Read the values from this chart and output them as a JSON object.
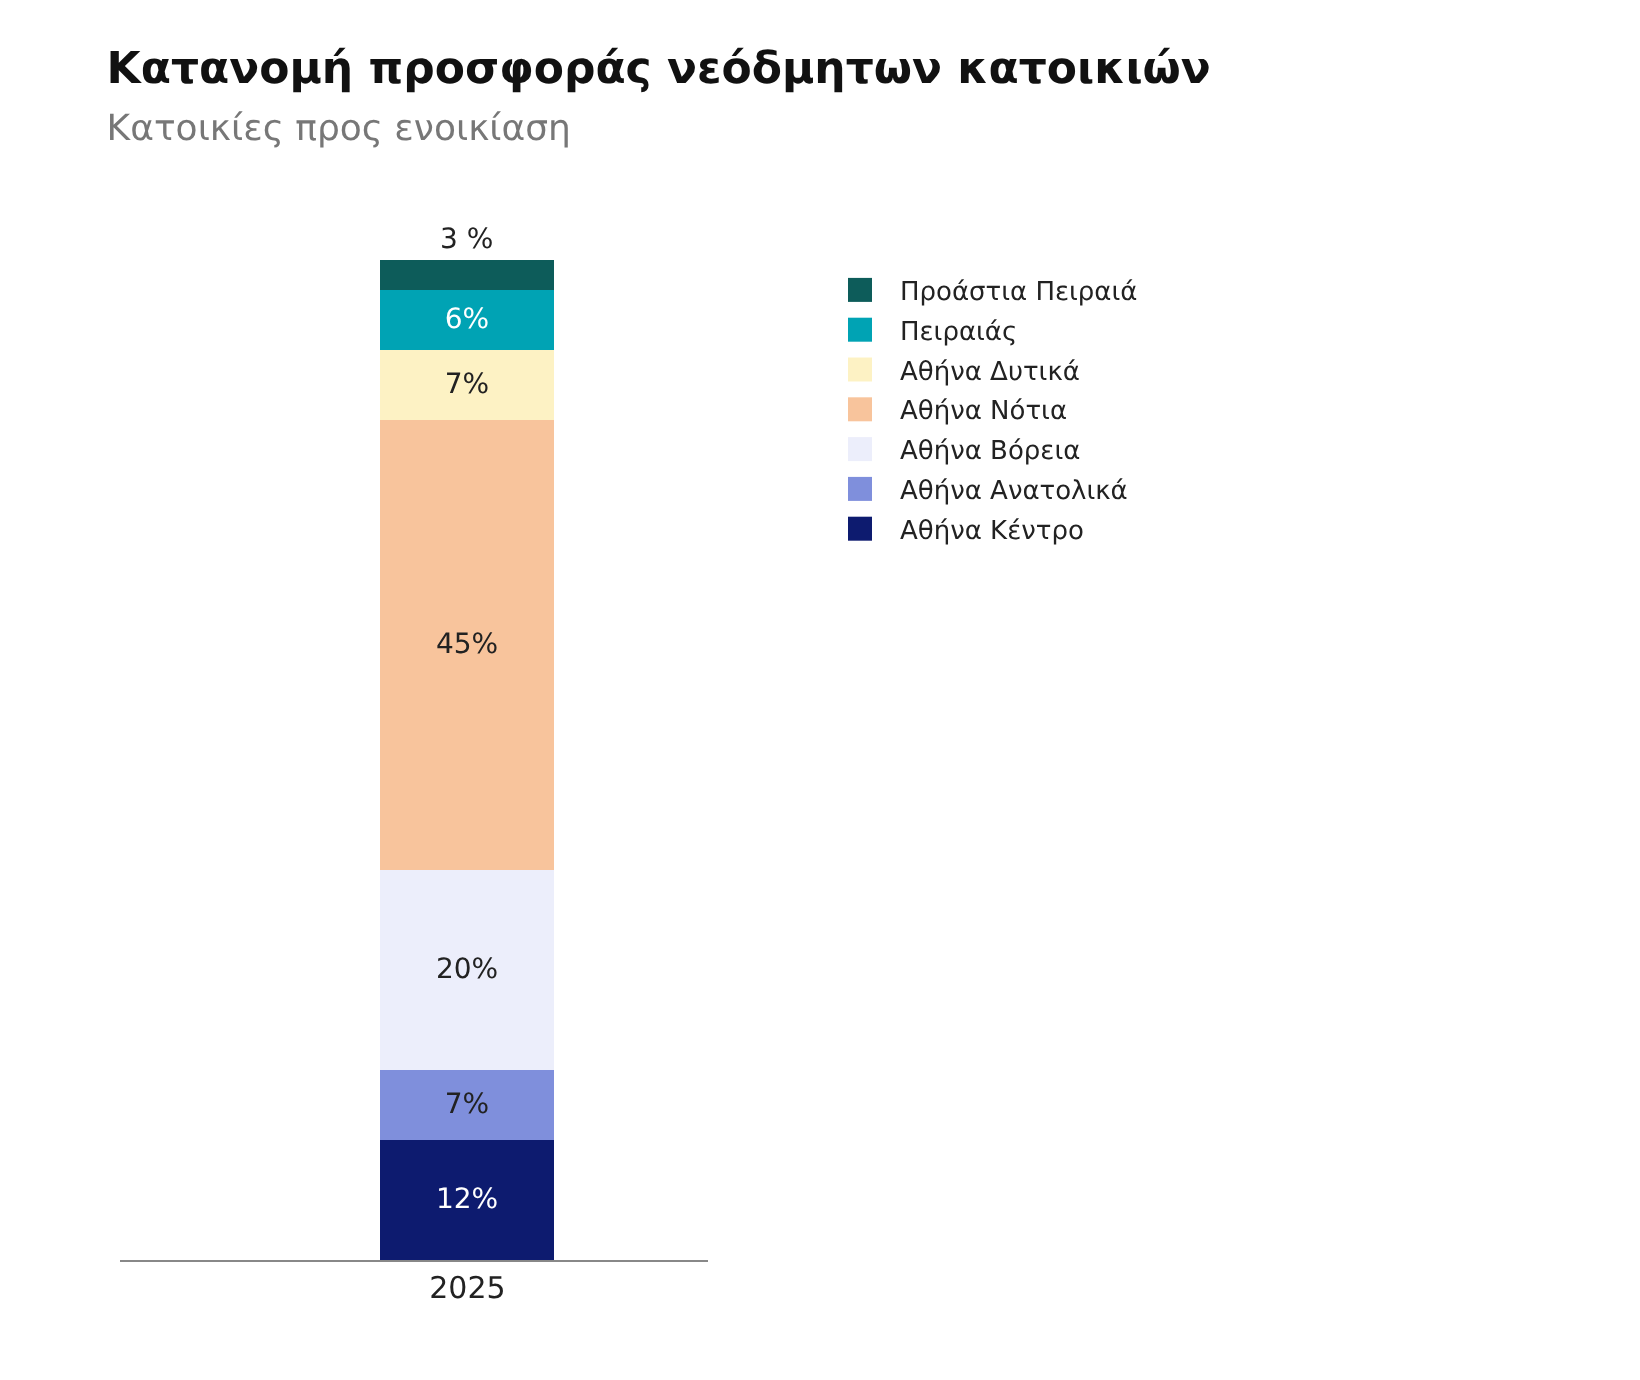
{
  "chart_data": {
    "type": "bar",
    "title": "Κατανομή προσφοράς νεόδμητων κατοικιών",
    "subtitle": "Κατοικίες προς ενοικίαση",
    "categories": [
      "2025"
    ],
    "stacked": true,
    "legend": "right",
    "tick_labels": "x",
    "series": [
      {
        "name": "Αθήνα Κέντρο",
        "color": "#0d1b6f",
        "values": [
          12
        ],
        "value_labels": [
          "12%"
        ]
      },
      {
        "name": "Αθήνα Ανατολικά",
        "color": "#7f8fdc",
        "values": [
          7
        ],
        "value_labels": [
          "7%"
        ]
      },
      {
        "name": "Αθήνα Βόρεια",
        "color": "#eceefb",
        "values": [
          20
        ],
        "value_labels": [
          "20%"
        ]
      },
      {
        "name": "Αθήνα Νότια",
        "color": "#f8c49c",
        "values": [
          45
        ],
        "value_labels": [
          "45%"
        ]
      },
      {
        "name": "Αθήνα Δυτικά",
        "color": "#fdf2c4",
        "values": [
          7
        ],
        "value_labels": [
          "7%"
        ]
      },
      {
        "name": "Πειραιάς",
        "color": "#00a3b4",
        "values": [
          6
        ],
        "value_labels": [
          "6%"
        ]
      },
      {
        "name": "Προάστια Πειραιά",
        "color": "#0d5c5a",
        "values": [
          3
        ],
        "value_labels": [
          "3 %"
        ]
      }
    ]
  }
}
